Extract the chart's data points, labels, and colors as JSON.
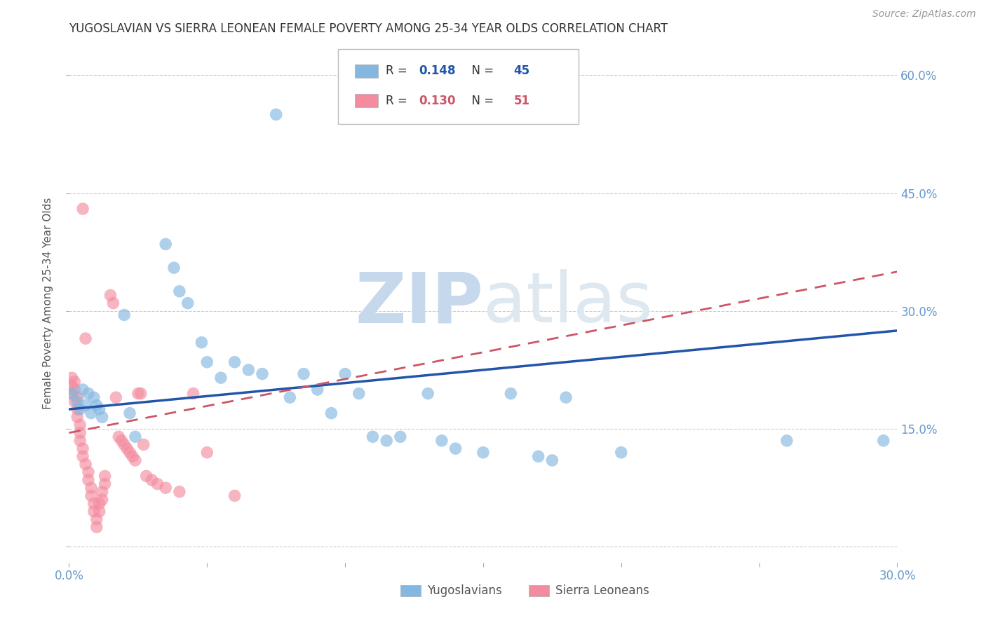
{
  "title": "YUGOSLAVIAN VS SIERRA LEONEAN FEMALE POVERTY AMONG 25-34 YEAR OLDS CORRELATION CHART",
  "source": "Source: ZipAtlas.com",
  "ylabel": "Female Poverty Among 25-34 Year Olds",
  "x_min": 0.0,
  "x_max": 0.3,
  "y_min": -0.02,
  "y_max": 0.64,
  "blue_color": "#85b8e0",
  "pink_color": "#f48ca0",
  "blue_line_color": "#2255aa",
  "pink_line_color": "#cc5566",
  "blue_scatter": [
    [
      0.001,
      0.195
    ],
    [
      0.003,
      0.185
    ],
    [
      0.004,
      0.175
    ],
    [
      0.005,
      0.2
    ],
    [
      0.006,
      0.18
    ],
    [
      0.007,
      0.195
    ],
    [
      0.008,
      0.17
    ],
    [
      0.009,
      0.19
    ],
    [
      0.01,
      0.18
    ],
    [
      0.011,
      0.175
    ],
    [
      0.012,
      0.165
    ],
    [
      0.02,
      0.295
    ],
    [
      0.022,
      0.17
    ],
    [
      0.024,
      0.14
    ],
    [
      0.035,
      0.385
    ],
    [
      0.038,
      0.355
    ],
    [
      0.04,
      0.325
    ],
    [
      0.043,
      0.31
    ],
    [
      0.048,
      0.26
    ],
    [
      0.05,
      0.235
    ],
    [
      0.055,
      0.215
    ],
    [
      0.06,
      0.235
    ],
    [
      0.065,
      0.225
    ],
    [
      0.07,
      0.22
    ],
    [
      0.075,
      0.55
    ],
    [
      0.08,
      0.19
    ],
    [
      0.085,
      0.22
    ],
    [
      0.09,
      0.2
    ],
    [
      0.095,
      0.17
    ],
    [
      0.1,
      0.22
    ],
    [
      0.105,
      0.195
    ],
    [
      0.11,
      0.14
    ],
    [
      0.115,
      0.135
    ],
    [
      0.12,
      0.14
    ],
    [
      0.13,
      0.195
    ],
    [
      0.135,
      0.135
    ],
    [
      0.14,
      0.125
    ],
    [
      0.15,
      0.12
    ],
    [
      0.16,
      0.195
    ],
    [
      0.17,
      0.115
    ],
    [
      0.175,
      0.11
    ],
    [
      0.18,
      0.19
    ],
    [
      0.2,
      0.12
    ],
    [
      0.26,
      0.135
    ],
    [
      0.295,
      0.135
    ]
  ],
  "pink_scatter": [
    [
      0.001,
      0.215
    ],
    [
      0.001,
      0.205
    ],
    [
      0.001,
      0.195
    ],
    [
      0.002,
      0.21
    ],
    [
      0.002,
      0.2
    ],
    [
      0.002,
      0.185
    ],
    [
      0.003,
      0.19
    ],
    [
      0.003,
      0.175
    ],
    [
      0.003,
      0.165
    ],
    [
      0.004,
      0.155
    ],
    [
      0.004,
      0.145
    ],
    [
      0.004,
      0.135
    ],
    [
      0.005,
      0.43
    ],
    [
      0.005,
      0.125
    ],
    [
      0.005,
      0.115
    ],
    [
      0.006,
      0.265
    ],
    [
      0.006,
      0.105
    ],
    [
      0.007,
      0.095
    ],
    [
      0.007,
      0.085
    ],
    [
      0.008,
      0.075
    ],
    [
      0.008,
      0.065
    ],
    [
      0.009,
      0.055
    ],
    [
      0.009,
      0.045
    ],
    [
      0.01,
      0.035
    ],
    [
      0.01,
      0.025
    ],
    [
      0.011,
      0.055
    ],
    [
      0.011,
      0.045
    ],
    [
      0.012,
      0.06
    ],
    [
      0.012,
      0.07
    ],
    [
      0.013,
      0.08
    ],
    [
      0.013,
      0.09
    ],
    [
      0.015,
      0.32
    ],
    [
      0.016,
      0.31
    ],
    [
      0.017,
      0.19
    ],
    [
      0.018,
      0.14
    ],
    [
      0.019,
      0.135
    ],
    [
      0.02,
      0.13
    ],
    [
      0.021,
      0.125
    ],
    [
      0.022,
      0.12
    ],
    [
      0.023,
      0.115
    ],
    [
      0.024,
      0.11
    ],
    [
      0.025,
      0.195
    ],
    [
      0.026,
      0.195
    ],
    [
      0.027,
      0.13
    ],
    [
      0.028,
      0.09
    ],
    [
      0.03,
      0.085
    ],
    [
      0.032,
      0.08
    ],
    [
      0.035,
      0.075
    ],
    [
      0.04,
      0.07
    ],
    [
      0.045,
      0.195
    ],
    [
      0.05,
      0.12
    ],
    [
      0.06,
      0.065
    ]
  ],
  "watermark_zip": "ZIP",
  "watermark_atlas": "atlas",
  "watermark_color": "#c5d8ec",
  "background_color": "#ffffff",
  "grid_color": "#cccccc",
  "axis_label_color": "#6699cc",
  "title_color": "#333333"
}
